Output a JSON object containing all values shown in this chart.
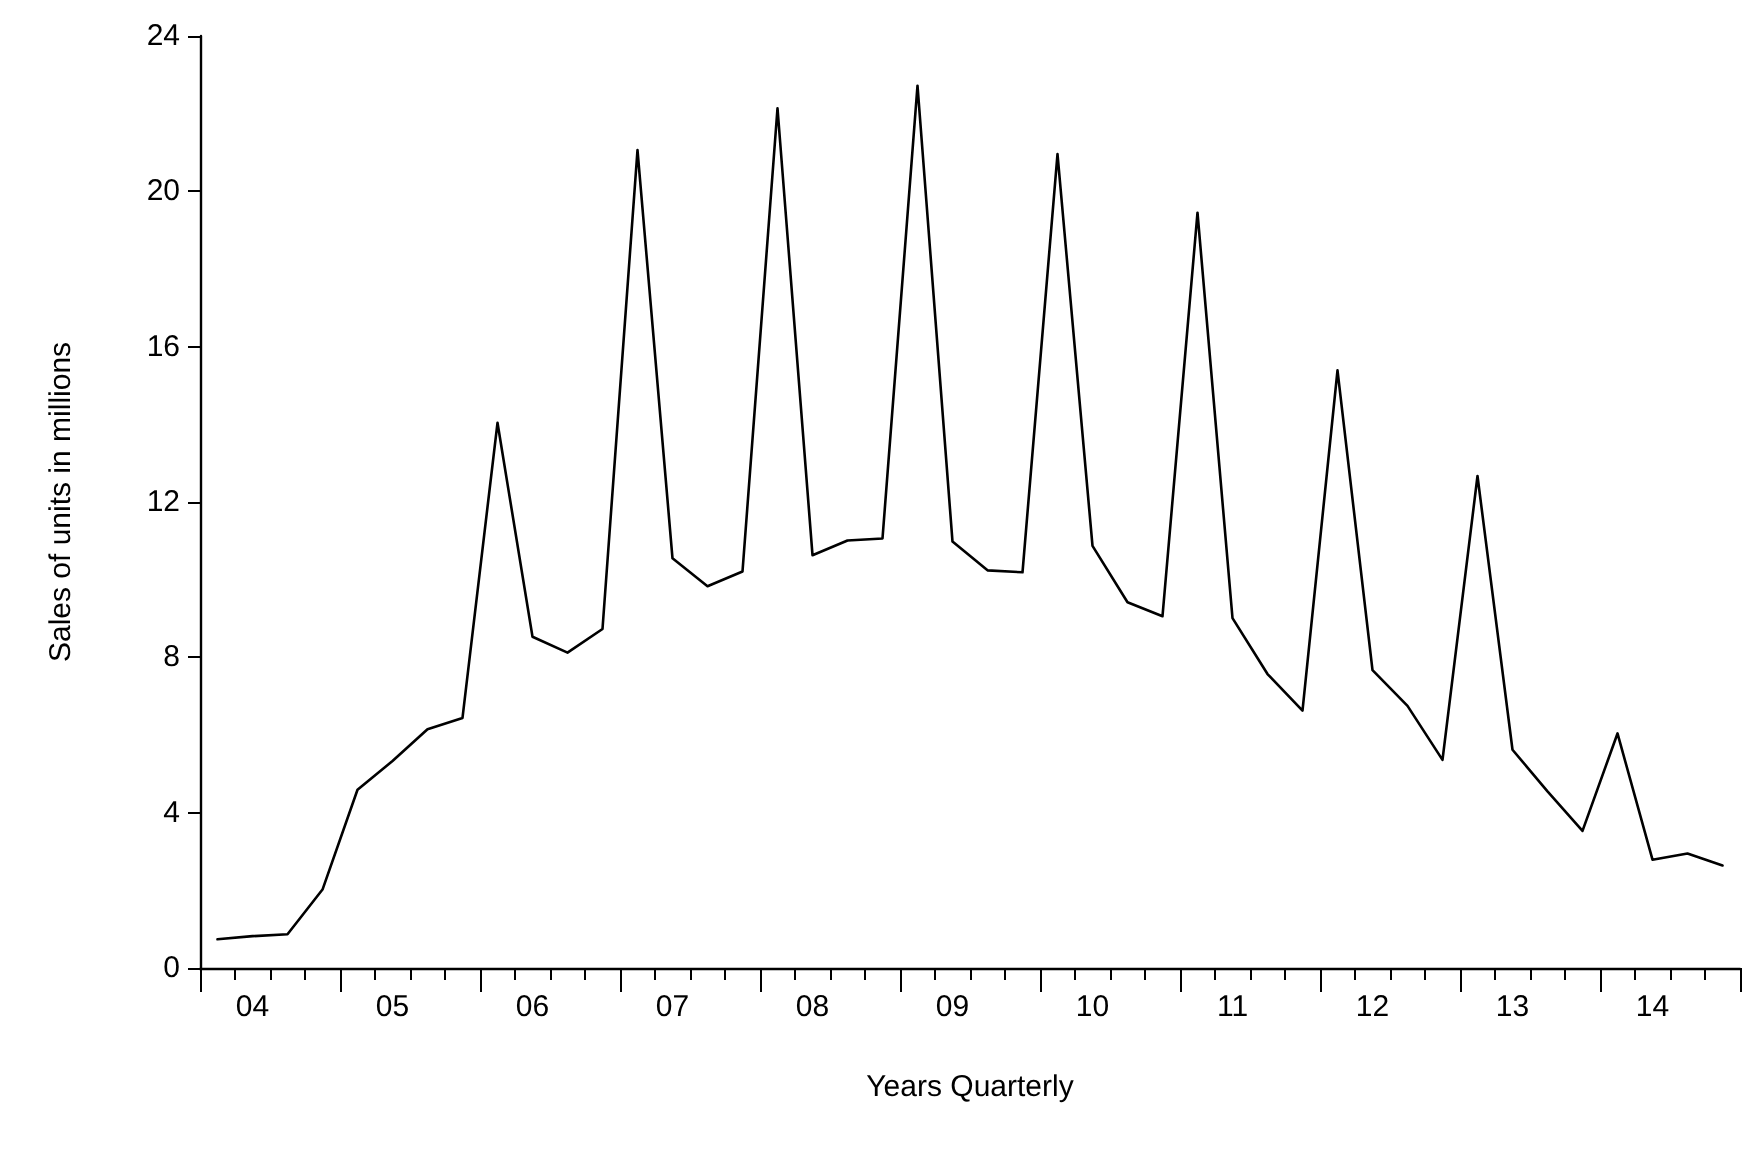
{
  "chart_data": {
    "type": "line",
    "xlabel": "Years Quarterly",
    "ylabel": "Sales of units in millions",
    "categories": [
      null,
      "04",
      null,
      null,
      null,
      "05",
      null,
      null,
      null,
      "06",
      null,
      null,
      null,
      "07",
      null,
      null,
      null,
      "08",
      null,
      null,
      null,
      "09",
      null,
      null,
      null,
      "10",
      null,
      null,
      null,
      "11",
      null,
      null,
      null,
      "12",
      null,
      null,
      null,
      "13",
      null,
      null,
      null,
      "14",
      null,
      null
    ],
    "series": [
      {
        "color": "#000000",
        "values": [
          0.74,
          0.82,
          0.87,
          2.02,
          4.59,
          5.33,
          6.15,
          6.44,
          14.04,
          8.53,
          8.12,
          8.73,
          21.06,
          10.55,
          9.83,
          10.21,
          22.14,
          10.63,
          11.01,
          11.06,
          22.72,
          10.98,
          10.24,
          10.19,
          20.96,
          10.87,
          9.42,
          9.06,
          19.45,
          9.01,
          7.57,
          6.63,
          15.39,
          7.67,
          6.75,
          5.36,
          12.67,
          5.62,
          4.55,
          3.53,
          6.04,
          2.79,
          2.95,
          2.64
        ]
      }
    ],
    "ylim": [
      0,
      24
    ],
    "yticks": [
      0,
      4,
      8,
      12,
      16,
      20,
      24
    ],
    "grid": false,
    "marker": "none",
    "line_style": "solid"
  }
}
